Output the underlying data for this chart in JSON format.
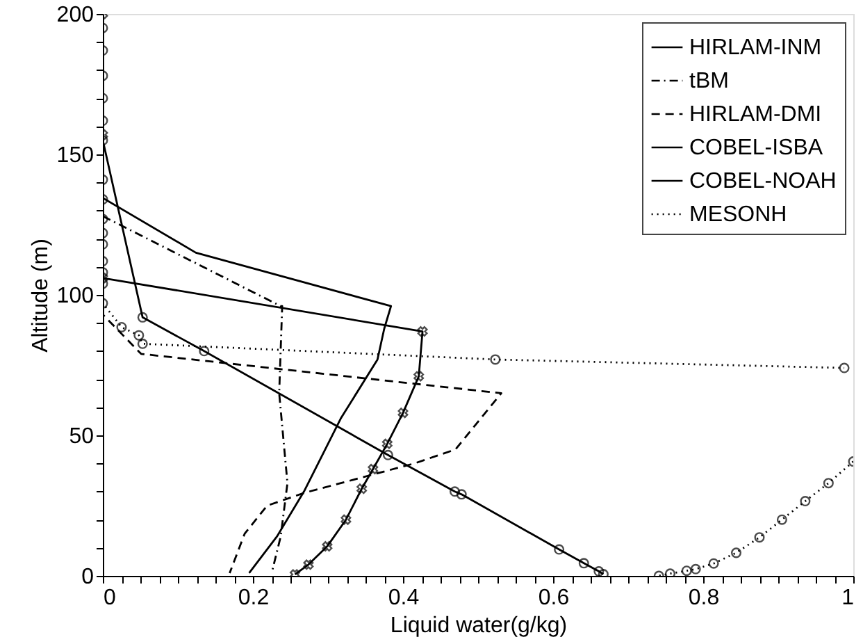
{
  "chart_data": {
    "type": "line",
    "xlabel": "Liquid water(g/kg)",
    "ylabel": "Altitude (m)",
    "xlim": [
      0,
      1
    ],
    "ylim": [
      0,
      200
    ],
    "xticks": [
      0,
      {
        "value": 0.025,
        "label": null
      },
      {
        "value": 0.05,
        "label": null
      },
      {
        "value": 0.075,
        "label": null
      },
      {
        "value": 0.1,
        "label": null
      },
      {
        "value": 0.125,
        "label": null
      },
      {
        "value": 0.15,
        "label": null
      },
      {
        "value": 0.175,
        "label": null
      },
      0.2,
      {
        "value": 0.225,
        "label": null
      },
      {
        "value": 0.25,
        "label": null
      },
      {
        "value": 0.275,
        "label": null
      },
      {
        "value": 0.3,
        "label": null
      },
      {
        "value": 0.325,
        "label": null
      },
      {
        "value": 0.35,
        "label": null
      },
      {
        "value": 0.375,
        "label": null
      },
      0.4,
      {
        "value": 0.425,
        "label": null
      },
      {
        "value": 0.45,
        "label": null
      },
      {
        "value": 0.475,
        "label": null
      },
      {
        "value": 0.5,
        "label": null
      },
      {
        "value": 0.525,
        "label": null
      },
      {
        "value": 0.55,
        "label": null
      },
      {
        "value": 0.575,
        "label": null
      },
      0.6,
      {
        "value": 0.625,
        "label": null
      },
      {
        "value": 0.65,
        "label": null
      },
      {
        "value": 0.675,
        "label": null
      },
      {
        "value": 0.7,
        "label": null
      },
      {
        "value": 0.725,
        "label": null
      },
      {
        "value": 0.75,
        "label": null
      },
      {
        "value": 0.775,
        "label": null
      },
      0.8,
      {
        "value": 0.825,
        "label": null
      },
      {
        "value": 0.85,
        "label": null
      },
      {
        "value": 0.875,
        "label": null
      },
      {
        "value": 0.9,
        "label": null
      },
      {
        "value": 0.925,
        "label": null
      },
      {
        "value": 0.95,
        "label": null
      },
      {
        "value": 0.975,
        "label": null
      },
      1
    ],
    "yticks": [
      0,
      {
        "value": 10,
        "label": null
      },
      {
        "value": 20,
        "label": null
      },
      {
        "value": 30,
        "label": null
      },
      {
        "value": 40,
        "label": null
      },
      50,
      {
        "value": 60,
        "label": null
      },
      {
        "value": 70,
        "label": null
      },
      {
        "value": 80,
        "label": null
      },
      {
        "value": 90,
        "label": null
      },
      100,
      {
        "value": 110,
        "label": null
      },
      {
        "value": 120,
        "label": null
      },
      {
        "value": 130,
        "label": null
      },
      {
        "value": 140,
        "label": null
      },
      150,
      {
        "value": 160,
        "label": null
      },
      {
        "value": 170,
        "label": null
      },
      {
        "value": 180,
        "label": null
      },
      {
        "value": 190,
        "label": null
      },
      200
    ],
    "grid": false,
    "legend": "top right",
    "series": [
      {
        "name": "HIRLAM-INM",
        "color": "#000000",
        "line_style": "solid",
        "marker": "circle",
        "x": [
          0,
          0,
          0,
          0,
          0,
          0,
          0.053,
          0.135,
          0.38,
          0.469,
          0.478,
          0.608,
          0.641,
          0.661,
          0.667
        ],
        "values": [
          195,
          187,
          178,
          170,
          162,
          155,
          92,
          80,
          43,
          30,
          29,
          9.4,
          4.5,
          1.6,
          0.6
        ]
      },
      {
        "name": "tBM",
        "color": "#000000",
        "line_style": "dashdot",
        "marker": "none",
        "x": [
          0,
          0.237,
          0.239,
          0.235,
          0.246,
          0.237,
          0.225
        ],
        "values": [
          128,
          96,
          96,
          65,
          33,
          14,
          1
        ]
      },
      {
        "name": "HIRLAM-DMI",
        "color": "#000000",
        "line_style": "dashed",
        "marker": "none",
        "x": [
          0,
          0,
          0.051,
          0.531,
          0.47,
          0.415,
          0.268,
          0.219,
          0.189,
          0.169
        ],
        "values": [
          100,
          93,
          79,
          65,
          45,
          40,
          29.5,
          25,
          15,
          1
        ]
      },
      {
        "name": "COBEL-ISBA",
        "color": "#000000",
        "line_style": "solid",
        "marker": "cross",
        "x": [
          0,
          0,
          0,
          0.426,
          0.421,
          0.4,
          0.379,
          0.36,
          0.345,
          0.324,
          0.299,
          0.274,
          0.256
        ],
        "values": [
          200,
          157,
          106,
          87,
          71,
          58,
          47,
          38,
          31,
          20,
          10.5,
          4,
          0.5
        ]
      },
      {
        "name": "COBEL-NOAH",
        "color": "#000000",
        "line_style": "solid",
        "marker": "none",
        "x": [
          0,
          0,
          0.124,
          0.384,
          0.375,
          0.366,
          0.317,
          0.268,
          0.232,
          0.195
        ],
        "values": [
          160,
          134.5,
          115,
          96,
          88,
          77,
          56,
          30,
          14,
          1
        ]
      },
      {
        "name": "MESONH",
        "color": "#000000",
        "line_style": "dotted",
        "marker": "circle",
        "x": [
          0,
          0,
          0,
          0,
          0,
          0,
          0,
          0,
          0,
          0.025,
          0.048,
          0.053,
          0.523,
          0.988,
          null,
          1.0,
          0.967,
          0.936,
          0.905,
          0.875,
          0.844,
          0.814,
          0.79,
          0.778,
          0.756,
          0.741
        ],
        "values": [
          141,
          134,
          127,
          122,
          118,
          112,
          108,
          104,
          97,
          88.5,
          85.6,
          82.6,
          77,
          74,
          null,
          40.7,
          33,
          26.6,
          20,
          13.7,
          8.2,
          4.4,
          2.4,
          1.8,
          0.8,
          0
        ]
      }
    ]
  }
}
